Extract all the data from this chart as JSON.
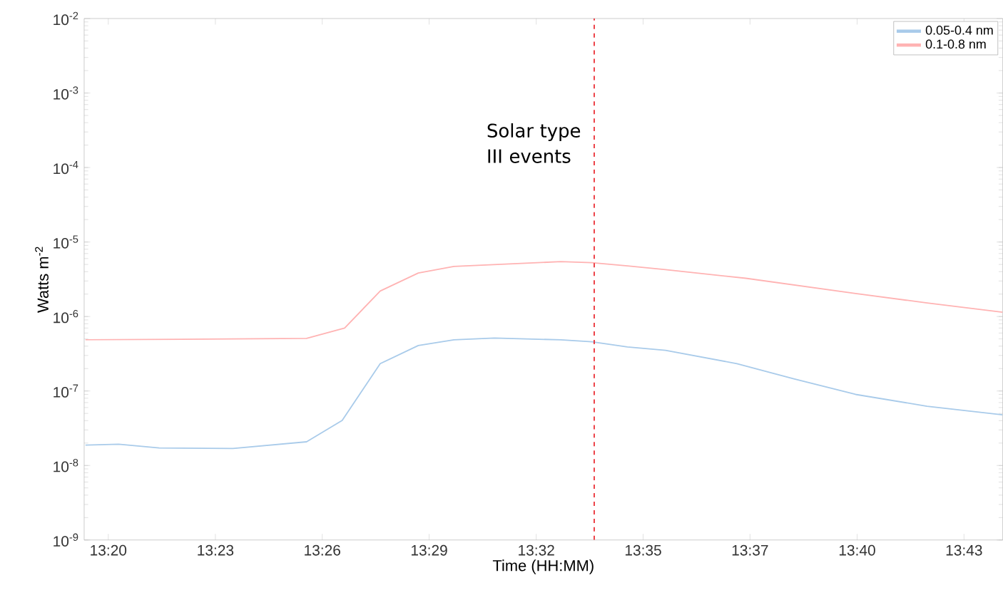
{
  "chart_data": {
    "type": "line",
    "xlabel": "Time (HH:MM)",
    "ylabel": "Watts m$^{-2}$",
    "log": "y",
    "legend": "top right",
    "xlim": [
      13.3224,
      13.7375
    ],
    "ylim": [
      1e-09,
      0.01
    ],
    "xticks": [
      {
        "value": 13.3333,
        "label": "13:20"
      },
      {
        "value": 13.3817,
        "label": "13:23"
      },
      {
        "value": 13.43,
        "label": "13:26"
      },
      {
        "value": 13.4783,
        "label": "13:29"
      },
      {
        "value": 13.5267,
        "label": "13:32"
      },
      {
        "value": 13.575,
        "label": "13:35"
      },
      {
        "value": 13.6233,
        "label": "13:37"
      },
      {
        "value": 13.6717,
        "label": "13:40"
      },
      {
        "value": 13.72,
        "label": "13:43"
      }
    ],
    "yticks": [
      {
        "value": 1e-09,
        "label": "10$^{-9}$"
      },
      {
        "value": 1e-08,
        "label": "10$^{-8}$"
      },
      {
        "value": 1e-07,
        "label": "10$^{-7}$"
      },
      {
        "value": 1e-06,
        "label": "10$^{-6}$"
      },
      {
        "value": 1e-05,
        "label": "10$^{-5}$"
      },
      {
        "value": 0.0001,
        "label": "10$^{-4}$"
      },
      {
        "value": 0.001,
        "label": "10$^{-3}$"
      },
      {
        "value": 0.01,
        "label": "10$^{-2}$"
      }
    ],
    "series": [
      {
        "name": "0.05-0.4 nm",
        "color": "#a9cbea",
        "x": [
          13.323,
          13.338,
          13.3563,
          13.3896,
          13.4229,
          13.439,
          13.4562,
          13.4734,
          13.4895,
          13.5078,
          13.5378,
          13.5518,
          13.5679,
          13.5851,
          13.6174,
          13.6431,
          13.671,
          13.7033,
          13.7374
        ],
        "values": [
          1.88e-08,
          1.93e-08,
          1.72e-08,
          1.69e-08,
          2.08e-08,
          4.03e-08,
          2.33e-07,
          4.08e-07,
          4.86e-07,
          5.15e-07,
          4.86e-07,
          4.57e-07,
          3.91e-07,
          3.52e-07,
          2.33e-07,
          1.46e-07,
          9e-08,
          6.25e-08,
          4.8e-08
        ]
      },
      {
        "name": "0.1-0.8 nm",
        "color": "#ffb3b3",
        "x": [
          13.323,
          13.4229,
          13.4401,
          13.4562,
          13.4734,
          13.4895,
          13.5378,
          13.5518,
          13.5679,
          13.5851,
          13.6214,
          13.671,
          13.7033,
          13.7374
        ],
        "values": [
          4.86e-07,
          5.08e-07,
          7e-07,
          2.2e-06,
          3.84e-06,
          4.7e-06,
          5.45e-06,
          5.28e-06,
          4.78e-06,
          4.25e-06,
          3.26e-06,
          2.04e-06,
          1.52e-06,
          1.14e-06
        ]
      }
    ],
    "ref_lines": [
      {
        "axis": "x",
        "value": 13.5529,
        "label": "Solar type III events",
        "color": "#e8131b",
        "line_style": "dashed"
      }
    ]
  }
}
